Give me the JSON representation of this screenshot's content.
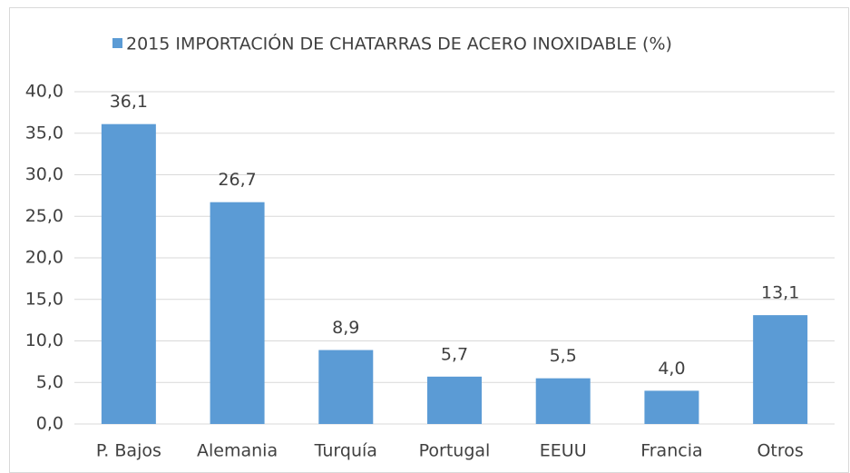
{
  "chart_data": {
    "type": "bar",
    "categories": [
      "P. Bajos",
      "Alemania",
      "Turquía",
      "Portugal",
      "EEUU",
      "Francia",
      "Otros"
    ],
    "series": [
      {
        "name": "2015 IMPORTACIÓN DE CHATARRAS DE ACERO INOXIDABLE (%)",
        "color": "#5b9bd5",
        "values": [
          36.1,
          26.7,
          8.9,
          5.7,
          5.5,
          4.0,
          13.1
        ],
        "value_labels": [
          "36,1",
          "26,7",
          "8,9",
          "5,7",
          "5,5",
          "4,0",
          "13,1"
        ]
      }
    ],
    "ylim": [
      0,
      40
    ],
    "yticks": [
      {
        "value": 0,
        "label": "0,0"
      },
      {
        "value": 5,
        "label": "5,0"
      },
      {
        "value": 10,
        "label": "10,0"
      },
      {
        "value": 15,
        "label": "15,0"
      },
      {
        "value": 20,
        "label": "20,0"
      },
      {
        "value": 25,
        "label": "25,0"
      },
      {
        "value": 30,
        "label": "30,0"
      },
      {
        "value": 35,
        "label": "35,0"
      },
      {
        "value": 40,
        "label": "40,0"
      }
    ],
    "grid": true,
    "legend": "top"
  }
}
